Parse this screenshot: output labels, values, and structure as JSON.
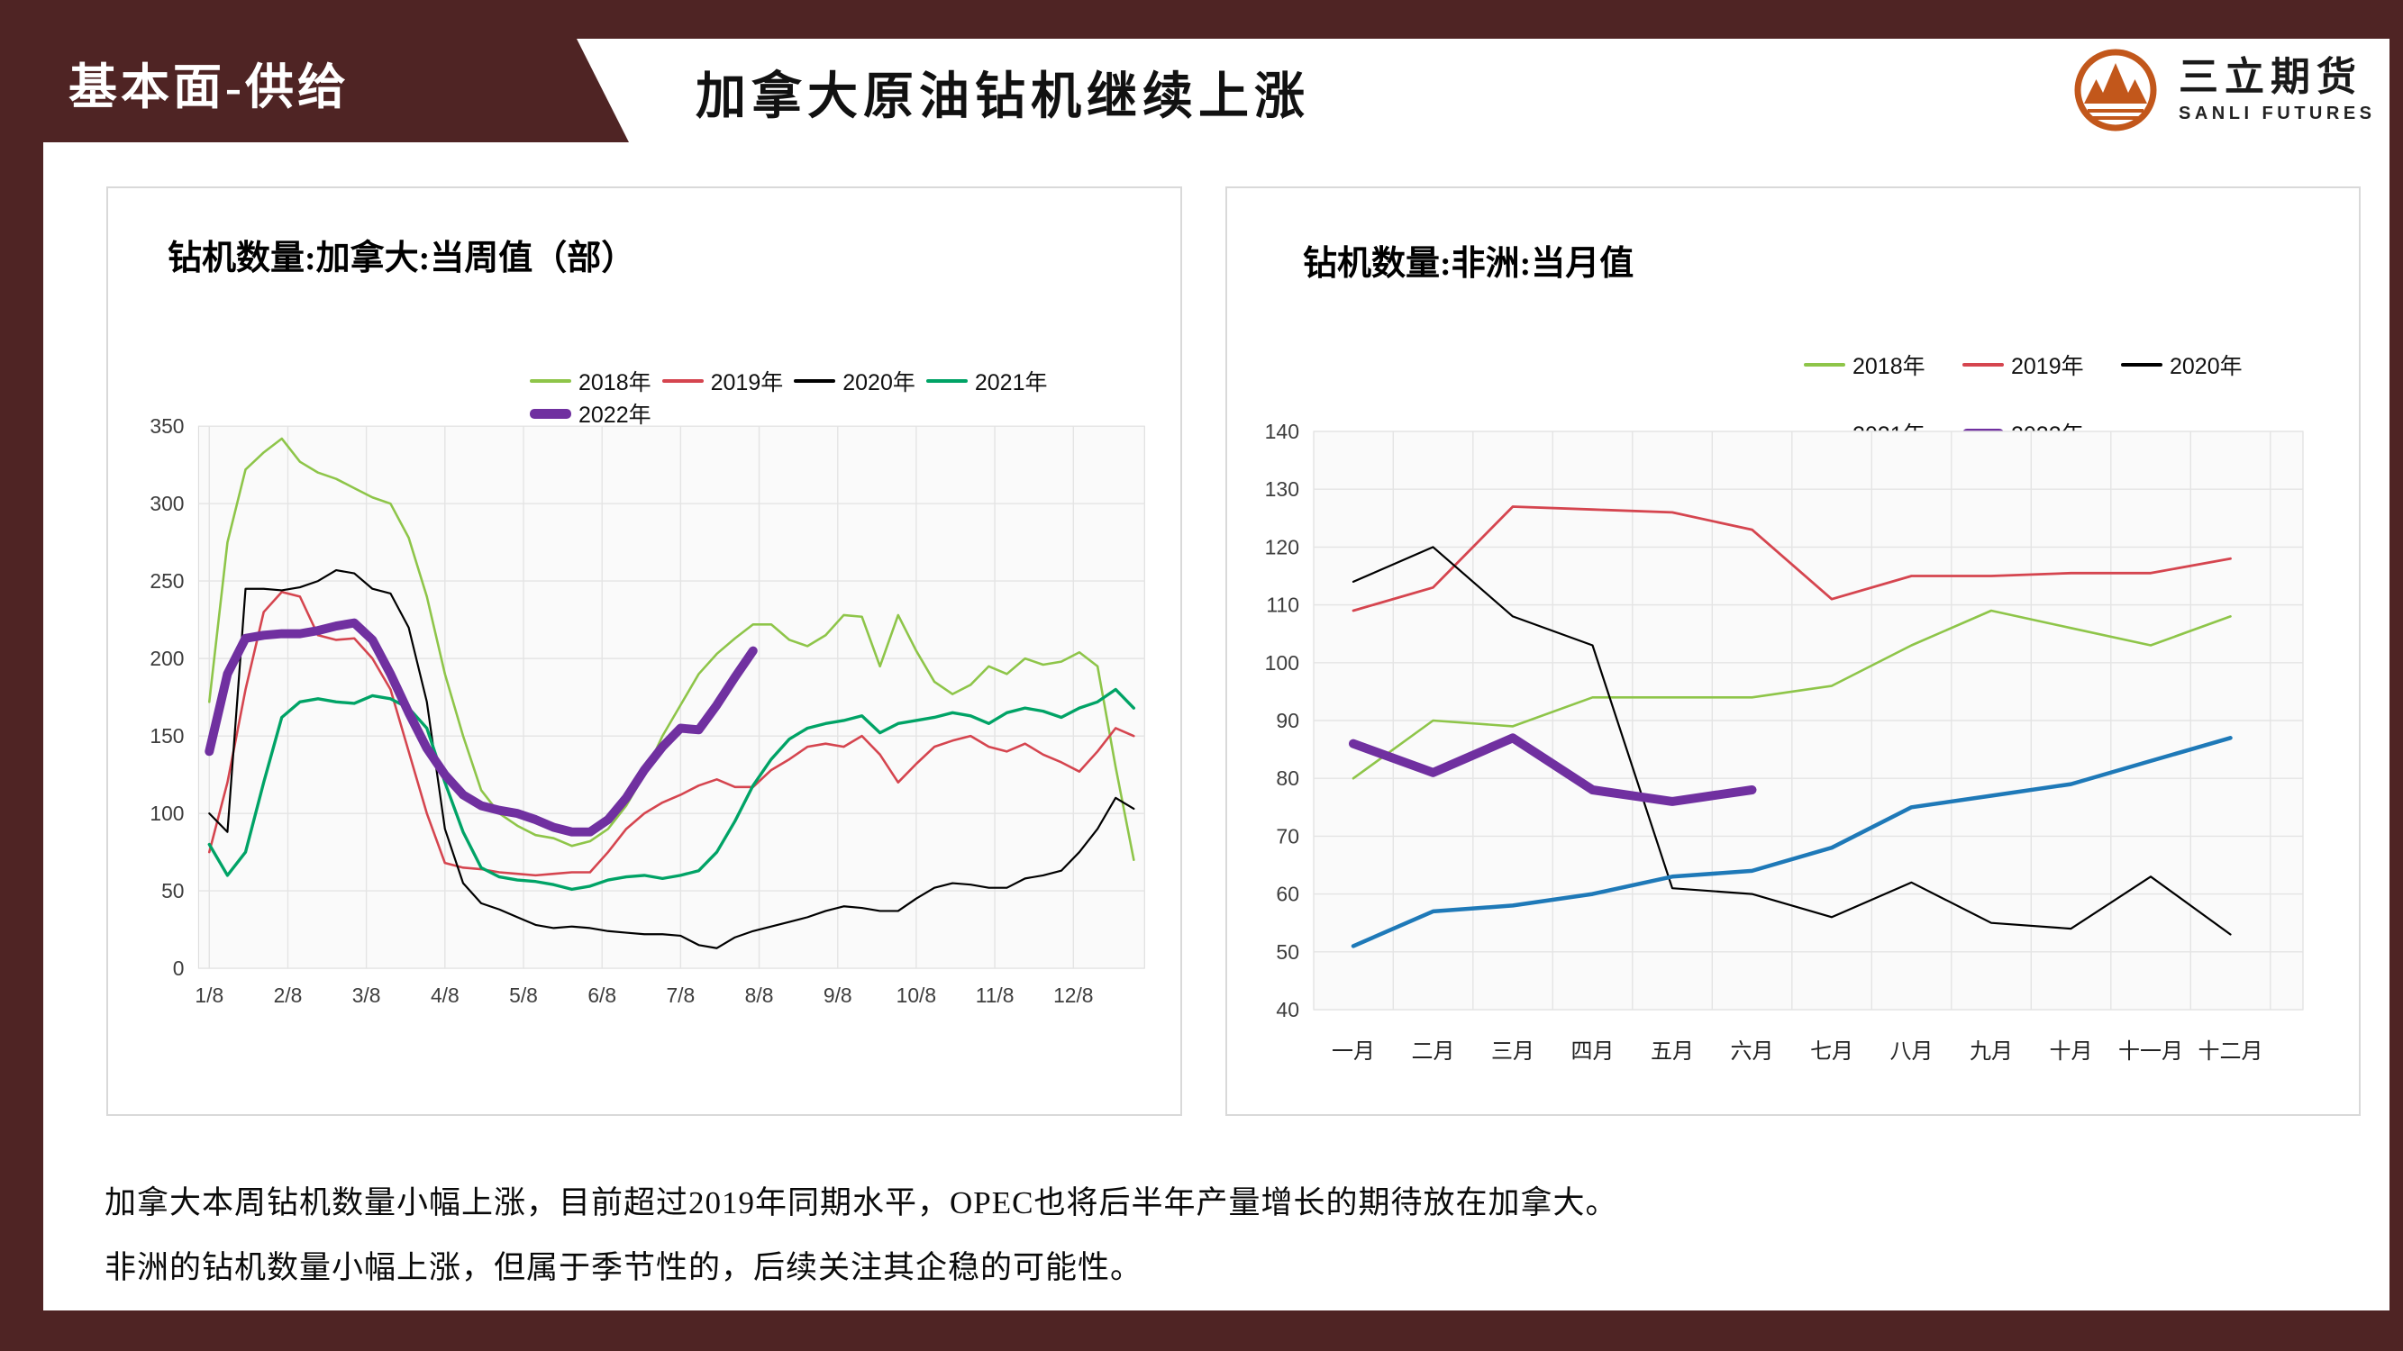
{
  "header": {
    "section": "基本面-供给",
    "title": "加拿大原油钻机继续上涨",
    "logo": {
      "name_cn": "三立期货",
      "name_en": "SANLI FUTURES"
    }
  },
  "colors": {
    "frame_maroon": "#4F2424",
    "logo_orange": "#C2571B",
    "green_2018": "#8EC549",
    "red_2019": "#D5454F",
    "black_2020": "#000000",
    "teal_2021_left": "#00A366",
    "blue_2021_right": "#1E79B8",
    "purple_2022": "#7030A0",
    "grid": "#E4E4E4",
    "plot_bg": "#FAFAFA"
  },
  "chart_data": [
    {
      "type": "line",
      "title": "钻机数量:加拿大:当周值（部）",
      "x_unit": "week",
      "x_ticks": [
        "1/8",
        "2/8",
        "3/8",
        "4/8",
        "5/8",
        "6/8",
        "7/8",
        "8/8",
        "9/8",
        "10/8",
        "11/8",
        "12/8"
      ],
      "ylim": [
        0,
        350
      ],
      "ytick_step": 50,
      "grid": true,
      "legend_position": "top-right-single-row",
      "series": [
        {
          "name": "2018年",
          "color": "#8EC549",
          "width": 2.6,
          "values": [
            172,
            275,
            322,
            333,
            342,
            327,
            320,
            316,
            310,
            304,
            300,
            278,
            240,
            190,
            150,
            115,
            100,
            92,
            86,
            84,
            79,
            82,
            90,
            105,
            125,
            150,
            170,
            190,
            203,
            213,
            222,
            222,
            212,
            208,
            215,
            228,
            227,
            195,
            228,
            205,
            185,
            177,
            183,
            195,
            190,
            200,
            196,
            198,
            204,
            195,
            130,
            70
          ]
        },
        {
          "name": "2019年",
          "color": "#D5454F",
          "width": 2.6,
          "values": [
            75,
            120,
            180,
            230,
            243,
            240,
            215,
            212,
            213,
            200,
            180,
            140,
            100,
            68,
            65,
            64,
            62,
            61,
            60,
            61,
            62,
            62,
            75,
            90,
            100,
            107,
            112,
            118,
            122,
            117,
            117,
            128,
            135,
            143,
            145,
            143,
            150,
            138,
            120,
            132,
            143,
            147,
            150,
            143,
            140,
            145,
            138,
            133,
            127,
            140,
            155,
            150
          ]
        },
        {
          "name": "2020年",
          "color": "#000000",
          "width": 2.2,
          "values": [
            100,
            88,
            245,
            245,
            244,
            246,
            250,
            257,
            255,
            245,
            242,
            220,
            172,
            90,
            55,
            42,
            38,
            33,
            28,
            26,
            27,
            26,
            24,
            23,
            22,
            22,
            21,
            15,
            13,
            20,
            24,
            27,
            30,
            33,
            37,
            40,
            39,
            37,
            37,
            45,
            52,
            55,
            54,
            52,
            52,
            58,
            60,
            63,
            75,
            90,
            110,
            103
          ]
        },
        {
          "name": "2021年",
          "color": "#00A366",
          "width": 3.4,
          "values": [
            80,
            60,
            75,
            120,
            162,
            172,
            174,
            172,
            171,
            176,
            174,
            168,
            155,
            120,
            88,
            65,
            59,
            57,
            56,
            54,
            51,
            53,
            57,
            59,
            60,
            58,
            60,
            63,
            75,
            95,
            118,
            135,
            148,
            155,
            158,
            160,
            163,
            152,
            158,
            160,
            162,
            165,
            163,
            158,
            165,
            168,
            166,
            162,
            168,
            172,
            180,
            168
          ]
        },
        {
          "name": "2022年",
          "color": "#7030A0",
          "width": 10,
          "values": [
            140,
            190,
            213,
            215,
            216,
            216,
            218,
            221,
            223,
            212,
            190,
            165,
            142,
            125,
            112,
            105,
            102,
            100,
            96,
            91,
            88,
            88,
            96,
            110,
            128,
            143,
            155,
            154,
            170,
            188,
            205
          ]
        }
      ]
    },
    {
      "type": "line",
      "title": "钻机数量:非洲:当月值",
      "x_unit": "month",
      "x_ticks": [
        "一月",
        "二月",
        "三月",
        "四月",
        "五月",
        "六月",
        "七月",
        "八月",
        "九月",
        "十月",
        "十一月",
        "十二月"
      ],
      "ylim": [
        40,
        140
      ],
      "ytick_step": 10,
      "grid": true,
      "legend_position": "top-right-two-rows",
      "series": [
        {
          "name": "2018年",
          "color": "#8EC549",
          "width": 2.6,
          "values": [
            80,
            90,
            89,
            94,
            94,
            94,
            96,
            103,
            109,
            106,
            103,
            108
          ]
        },
        {
          "name": "2019年",
          "color": "#D5454F",
          "width": 2.8,
          "values": [
            109,
            113,
            127,
            126.5,
            126,
            123,
            111,
            115,
            115,
            115.5,
            115.5,
            118
          ]
        },
        {
          "name": "2020年",
          "color": "#000000",
          "width": 2.2,
          "values": [
            114,
            120,
            108,
            103,
            61,
            60,
            56,
            62,
            55,
            54,
            63,
            53
          ]
        },
        {
          "name": "2021年",
          "color": "#1E79B8",
          "width": 4.5,
          "values": [
            51,
            57,
            58,
            60,
            63,
            64,
            68,
            75,
            77,
            79,
            83,
            87
          ]
        },
        {
          "name": "2022年",
          "color": "#7030A0",
          "width": 10,
          "values": [
            86,
            81,
            87,
            78,
            76,
            78
          ]
        }
      ]
    }
  ],
  "notes": [
    "加拿大本周钻机数量小幅上涨，目前超过2019年同期水平，OPEC也将后半年产量增长的期待放在加拿大。",
    "非洲的钻机数量小幅上涨，但属于季节性的，后续关注其企稳的可能性。"
  ]
}
